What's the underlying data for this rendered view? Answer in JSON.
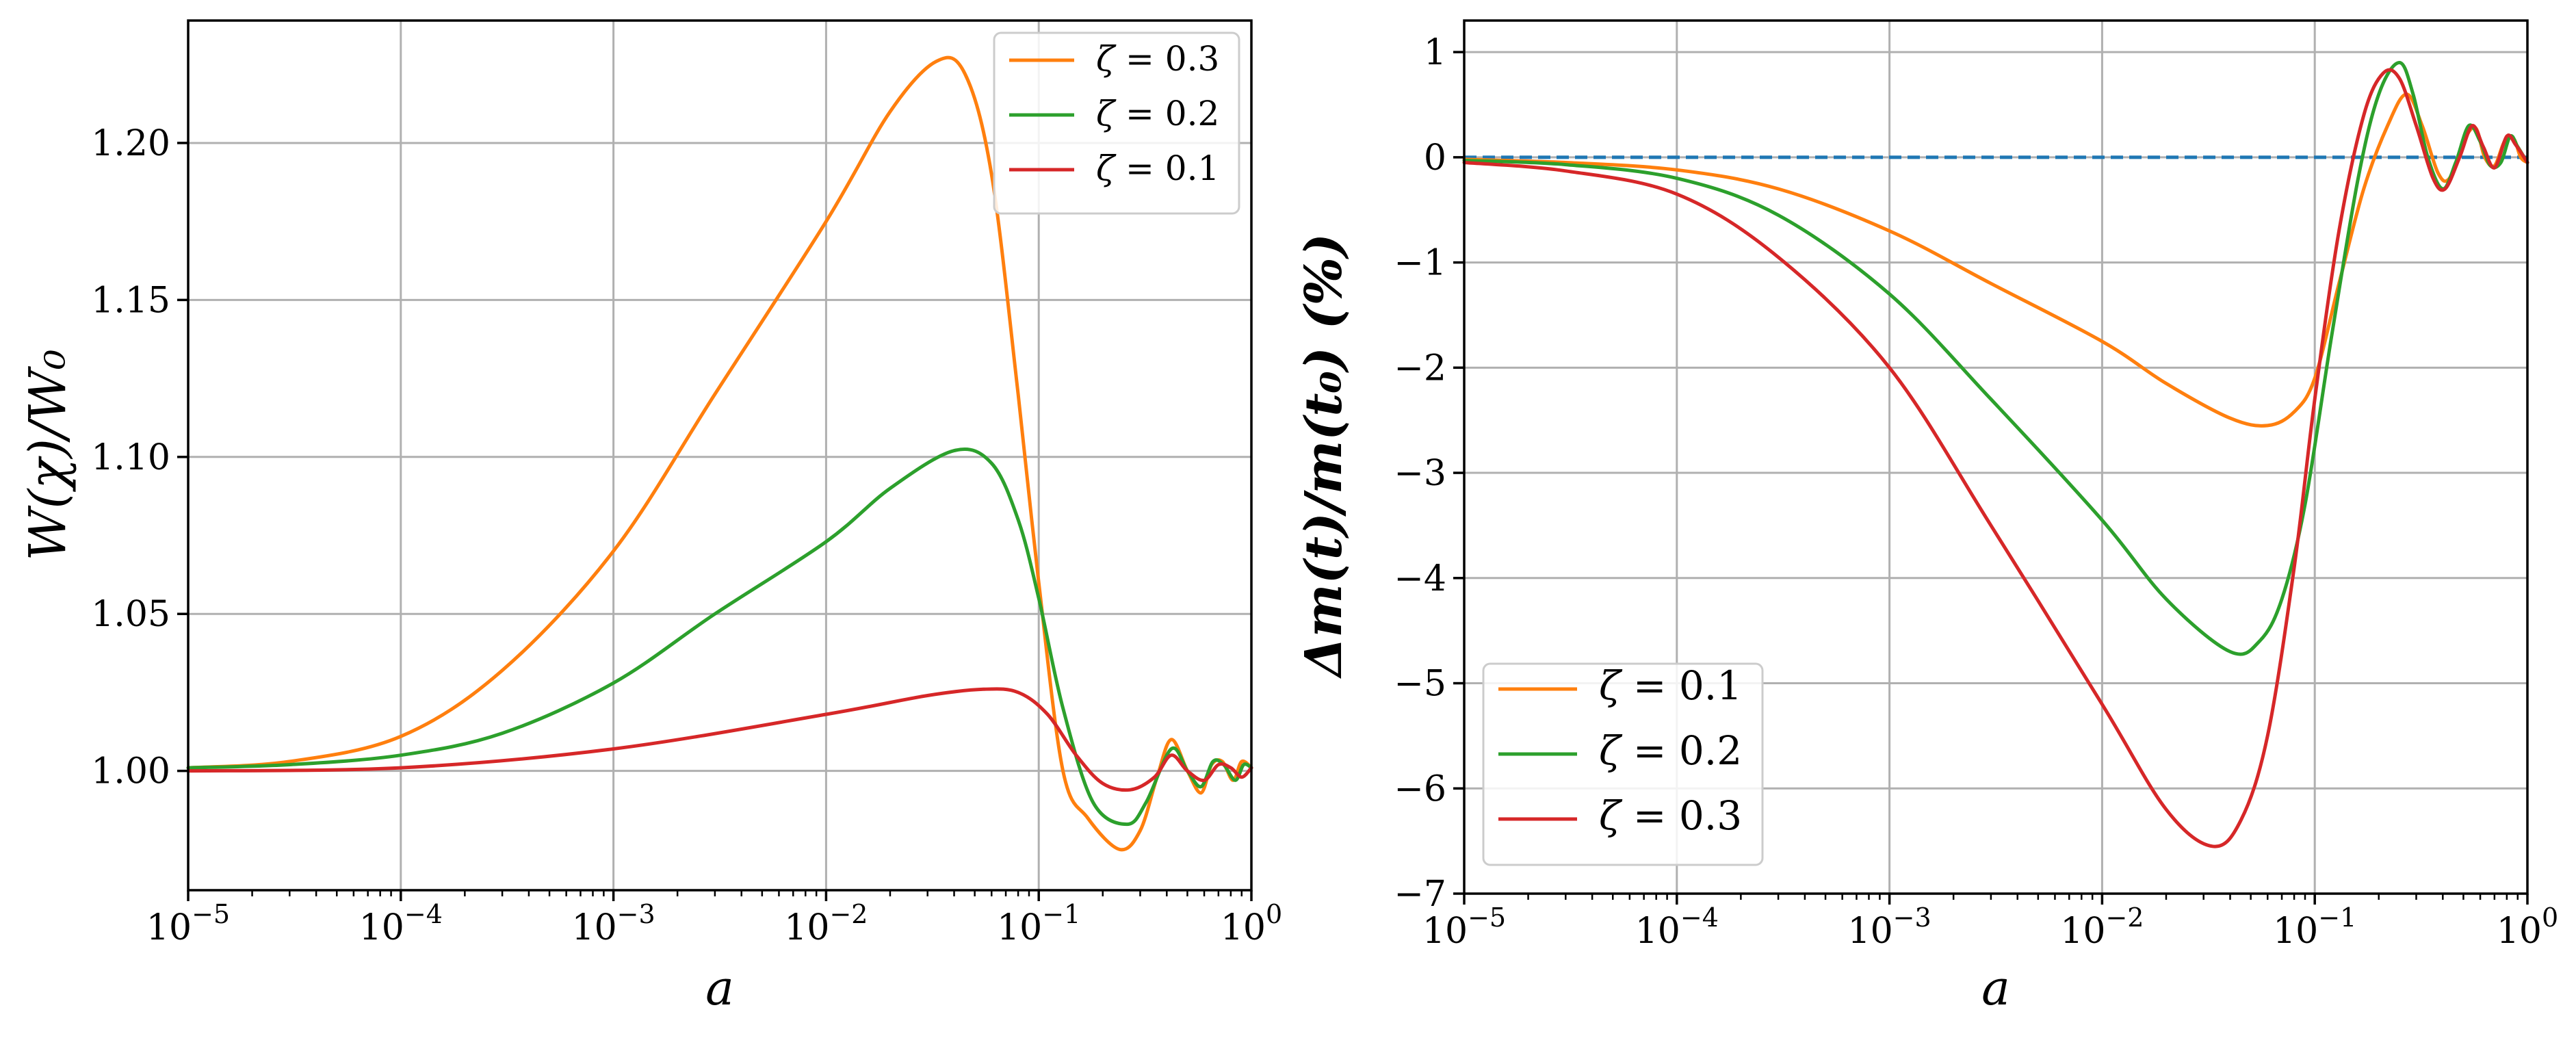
{
  "chart_data": [
    {
      "type": "line",
      "xscale": "log",
      "xlabel": "a",
      "ylabel": "W(χ)/W₀",
      "xlim": [
        1e-05,
        1
      ],
      "ylim": [
        0.962,
        1.239
      ],
      "x_ticks": [
        1e-05,
        0.0001,
        0.001,
        0.01,
        0.1,
        1
      ],
      "x_tick_labels": [
        {
          "base": "10",
          "exp": "−5"
        },
        {
          "base": "10",
          "exp": "−4"
        },
        {
          "base": "10",
          "exp": "−3"
        },
        {
          "base": "10",
          "exp": "−2"
        },
        {
          "base": "10",
          "exp": "−1"
        },
        {
          "base": "10",
          "exp": "0"
        }
      ],
      "y_ticks": [
        1.0,
        1.05,
        1.1,
        1.15,
        1.2
      ],
      "y_tick_labels": [
        "1.00",
        "1.05",
        "1.10",
        "1.15",
        "1.20"
      ],
      "grid": true,
      "legend_position": "top-right",
      "series": [
        {
          "name": "ζ = 0.3",
          "symbol": "ζ",
          "value_text": "= 0.3",
          "color": "#ff7f0e",
          "points": [
            [
              1e-05,
              1.001
            ],
            [
              3e-05,
              1.003
            ],
            [
              0.0001,
              1.011
            ],
            [
              0.0003,
              1.032
            ],
            [
              0.001,
              1.07
            ],
            [
              0.003,
              1.12
            ],
            [
              0.01,
              1.175
            ],
            [
              0.02,
              1.21
            ],
            [
              0.033,
              1.226
            ],
            [
              0.045,
              1.222
            ],
            [
              0.06,
              1.19
            ],
            [
              0.08,
              1.12
            ],
            [
              0.1,
              1.06
            ],
            [
              0.13,
              1.0
            ],
            [
              0.17,
              0.985
            ],
            [
              0.24,
              0.975
            ],
            [
              0.3,
              0.981
            ],
            [
              0.36,
              0.998
            ],
            [
              0.42,
              1.01
            ],
            [
              0.5,
              1.0
            ],
            [
              0.58,
              0.993
            ],
            [
              0.65,
              1.002
            ],
            [
              0.73,
              1.003
            ],
            [
              0.82,
              0.997
            ],
            [
              0.9,
              1.003
            ],
            [
              1.0,
              1.001
            ]
          ]
        },
        {
          "name": "ζ = 0.2",
          "symbol": "ζ",
          "value_text": "= 0.2",
          "color": "#2ca02c",
          "points": [
            [
              1e-05,
              1.001
            ],
            [
              3e-05,
              1.002
            ],
            [
              0.0001,
              1.005
            ],
            [
              0.0003,
              1.012
            ],
            [
              0.001,
              1.028
            ],
            [
              0.003,
              1.05
            ],
            [
              0.01,
              1.073
            ],
            [
              0.02,
              1.09
            ],
            [
              0.04,
              1.102
            ],
            [
              0.06,
              1.098
            ],
            [
              0.08,
              1.08
            ],
            [
              0.1,
              1.055
            ],
            [
              0.13,
              1.02
            ],
            [
              0.18,
              0.99
            ],
            [
              0.26,
              0.983
            ],
            [
              0.32,
              0.99
            ],
            [
              0.42,
              1.007
            ],
            [
              0.5,
              1.0
            ],
            [
              0.58,
              0.995
            ],
            [
              0.66,
              1.003
            ],
            [
              0.74,
              1.002
            ],
            [
              0.84,
              0.997
            ],
            [
              0.92,
              1.002
            ],
            [
              1.0,
              1.001
            ]
          ]
        },
        {
          "name": "ζ = 0.1",
          "symbol": "ζ",
          "value_text": "= 0.1",
          "color": "#d62728",
          "points": [
            [
              1e-05,
              1.0
            ],
            [
              0.0001,
              1.001
            ],
            [
              0.001,
              1.007
            ],
            [
              0.01,
              1.018
            ],
            [
              0.03,
              1.024
            ],
            [
              0.055,
              1.026
            ],
            [
              0.08,
              1.025
            ],
            [
              0.11,
              1.018
            ],
            [
              0.15,
              1.005
            ],
            [
              0.2,
              0.996
            ],
            [
              0.27,
              0.994
            ],
            [
              0.35,
              0.998
            ],
            [
              0.42,
              1.005
            ],
            [
              0.5,
              1.0
            ],
            [
              0.6,
              0.997
            ],
            [
              0.7,
              1.002
            ],
            [
              0.8,
              1.001
            ],
            [
              0.9,
              0.998
            ],
            [
              1.0,
              1.001
            ]
          ]
        }
      ]
    },
    {
      "type": "line",
      "xscale": "log",
      "xlabel": "a",
      "ylabel": "Δm(t)/m(t₀)  (%)",
      "xlim": [
        1e-05,
        1
      ],
      "ylim": [
        -7,
        1.3
      ],
      "x_ticks": [
        1e-05,
        0.0001,
        0.001,
        0.01,
        0.1,
        1
      ],
      "x_tick_labels": [
        {
          "base": "10",
          "exp": "−5"
        },
        {
          "base": "10",
          "exp": "−4"
        },
        {
          "base": "10",
          "exp": "−3"
        },
        {
          "base": "10",
          "exp": "−2"
        },
        {
          "base": "10",
          "exp": "−1"
        },
        {
          "base": "10",
          "exp": "0"
        }
      ],
      "y_ticks": [
        -7,
        -6,
        -5,
        -4,
        -3,
        -2,
        -1,
        0,
        1
      ],
      "y_tick_labels": [
        "−7",
        "−6",
        "−5",
        "−4",
        "−3",
        "−2",
        "−1",
        "0",
        "1"
      ],
      "grid": true,
      "legend_position": "bottom-left",
      "reference_line": {
        "y": 0,
        "style": "dashed",
        "color": "#1f77b4"
      },
      "series": [
        {
          "name": "ζ = 0.1",
          "symbol": "ζ",
          "value_text": "= 0.1",
          "color": "#ff7f0e",
          "points": [
            [
              1e-05,
              -0.02
            ],
            [
              3e-05,
              -0.05
            ],
            [
              0.0001,
              -0.12
            ],
            [
              0.0003,
              -0.3
            ],
            [
              0.001,
              -0.7
            ],
            [
              0.003,
              -1.2
            ],
            [
              0.01,
              -1.75
            ],
            [
              0.02,
              -2.15
            ],
            [
              0.04,
              -2.48
            ],
            [
              0.06,
              -2.55
            ],
            [
              0.08,
              -2.42
            ],
            [
              0.1,
              -2.1
            ],
            [
              0.13,
              -1.2
            ],
            [
              0.17,
              -0.3
            ],
            [
              0.22,
              0.3
            ],
            [
              0.27,
              0.6
            ],
            [
              0.32,
              0.3
            ],
            [
              0.38,
              -0.15
            ],
            [
              0.43,
              -0.2
            ],
            [
              0.5,
              0.15
            ],
            [
              0.57,
              0.28
            ],
            [
              0.63,
              0.0
            ],
            [
              0.7,
              -0.08
            ],
            [
              0.78,
              0.15
            ],
            [
              0.86,
              0.18
            ],
            [
              0.93,
              0.0
            ],
            [
              1.0,
              -0.05
            ]
          ]
        },
        {
          "name": "ζ = 0.2",
          "symbol": "ζ",
          "value_text": "= 0.2",
          "color": "#2ca02c",
          "points": [
            [
              1e-05,
              -0.03
            ],
            [
              3e-05,
              -0.07
            ],
            [
              0.0001,
              -0.2
            ],
            [
              0.0003,
              -0.55
            ],
            [
              0.001,
              -1.3
            ],
            [
              0.003,
              -2.3
            ],
            [
              0.01,
              -3.45
            ],
            [
              0.02,
              -4.2
            ],
            [
              0.04,
              -4.7
            ],
            [
              0.055,
              -4.6
            ],
            [
              0.07,
              -4.2
            ],
            [
              0.09,
              -3.3
            ],
            [
              0.12,
              -1.7
            ],
            [
              0.16,
              -0.2
            ],
            [
              0.2,
              0.6
            ],
            [
              0.25,
              0.9
            ],
            [
              0.29,
              0.6
            ],
            [
              0.34,
              0.0
            ],
            [
              0.4,
              -0.3
            ],
            [
              0.46,
              -0.05
            ],
            [
              0.53,
              0.3
            ],
            [
              0.6,
              0.15
            ],
            [
              0.67,
              -0.08
            ],
            [
              0.75,
              -0.05
            ],
            [
              0.83,
              0.2
            ],
            [
              0.9,
              0.1
            ],
            [
              1.0,
              -0.05
            ]
          ]
        },
        {
          "name": "ζ = 0.3",
          "symbol": "ζ",
          "value_text": "= 0.3",
          "color": "#d62728",
          "points": [
            [
              1e-05,
              -0.05
            ],
            [
              3e-05,
              -0.13
            ],
            [
              0.0001,
              -0.35
            ],
            [
              0.0003,
              -0.95
            ],
            [
              0.001,
              -2.0
            ],
            [
              0.003,
              -3.5
            ],
            [
              0.01,
              -5.2
            ],
            [
              0.02,
              -6.2
            ],
            [
              0.033,
              -6.55
            ],
            [
              0.045,
              -6.3
            ],
            [
              0.06,
              -5.5
            ],
            [
              0.08,
              -3.9
            ],
            [
              0.1,
              -2.3
            ],
            [
              0.13,
              -0.7
            ],
            [
              0.17,
              0.4
            ],
            [
              0.21,
              0.8
            ],
            [
              0.25,
              0.75
            ],
            [
              0.3,
              0.3
            ],
            [
              0.36,
              -0.2
            ],
            [
              0.41,
              -0.3
            ],
            [
              0.48,
              0.0
            ],
            [
              0.55,
              0.3
            ],
            [
              0.62,
              0.1
            ],
            [
              0.7,
              -0.1
            ],
            [
              0.8,
              0.2
            ],
            [
              0.88,
              0.12
            ],
            [
              1.0,
              -0.05
            ]
          ]
        }
      ]
    }
  ]
}
